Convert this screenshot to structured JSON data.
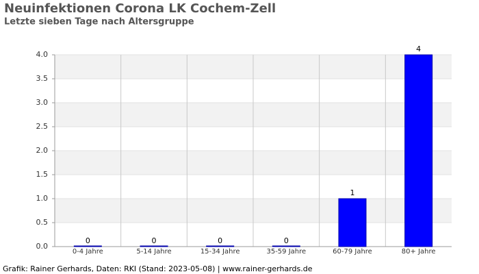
{
  "chart_data": {
    "type": "bar",
    "title": "Neuinfektionen Corona LK Cochem-Zell",
    "subtitle": "Letzte sieben Tage nach Altersgruppe",
    "footer": "Grafik: Rainer Gerhards, Daten: RKI (Stand: 2023-05-08) | www.rainer-gerhards.de",
    "categories": [
      "0-4 Jahre",
      "5-14 Jahre",
      "15-34 Jahre",
      "35-59 Jahre",
      "60-79 Jahre",
      "80+ Jahre"
    ],
    "values": [
      0,
      0,
      0,
      0,
      1,
      4
    ],
    "color": "#0000ff",
    "ylim": [
      0,
      4
    ],
    "yticks": [
      {
        "value": 0,
        "label": "0.0"
      },
      0.5,
      {
        "value": 1,
        "label": "1.0"
      },
      1.5,
      {
        "value": 2,
        "label": "2.0"
      },
      2.5,
      {
        "value": 3,
        "label": "3.0"
      },
      3.5,
      {
        "value": 4,
        "label": "4.0"
      }
    ],
    "grid": true
  }
}
